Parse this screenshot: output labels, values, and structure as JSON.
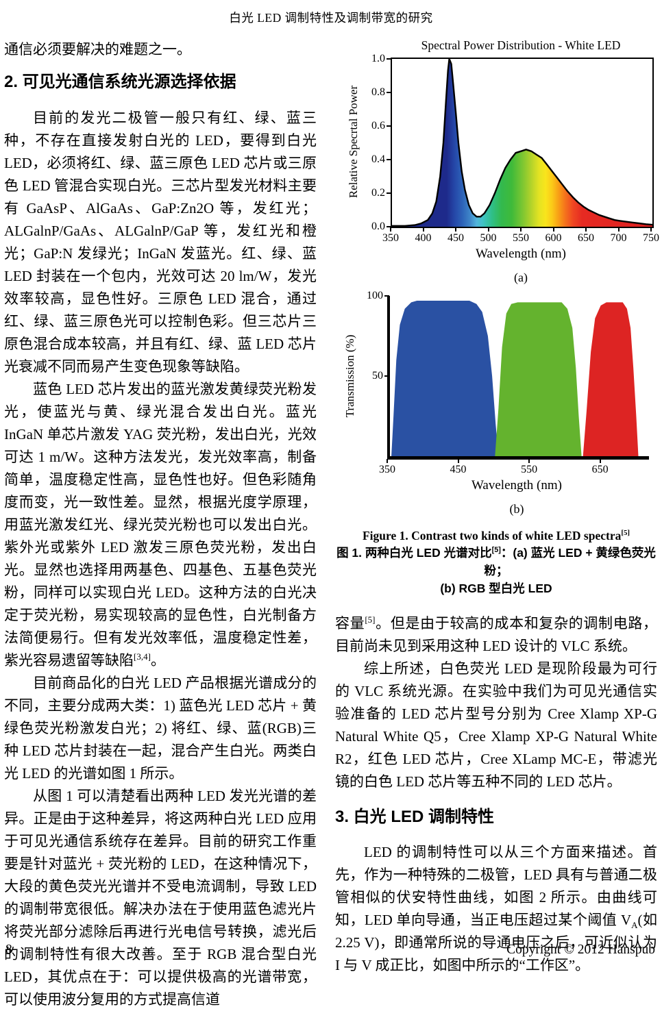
{
  "page": {
    "header_title": "白光 LED 调制特性及调制带宽的研究",
    "footer": {
      "page_number": "8",
      "copyright": "Copyright © 2012 Hanspub"
    }
  },
  "left_column": {
    "intro_line": "通信必须要解决的难题之一。",
    "section2_heading": "2. 可见光通信系统光源选择依据",
    "para1": "目前的发光二极管一般只有红、绿、蓝三种，不存在直接发射白光的 LED，要得到白光 LED，必须将红、绿、蓝三原色 LED 芯片或三原色 LED 管混合实现白光。三芯片型发光材料主要有 GaAsP、AlGaAs、GaP:Zn2O 等，发红光；ALGalnP/GaAs、ALGalnP/GaP 等，发红光和橙光；GaP:N 发绿光；InGaN 发蓝光。红、绿、蓝 LED 封装在一个包内，光效可达 20 lm/W，发光效率较高，显色性好。三原色 LED 混合，通过红、绿、蓝三原色光可以控制色彩。但三芯片三原色混合成本较高，并且有红、绿、蓝 LED 芯片光衰减不同而易产生变色现象等缺陷。",
    "para2_segments": [
      {
        "t": "蓝色 LED 芯片发出的蓝光激发黄绿荧光粉发光，使蓝光与黄、绿光混合发出白光。蓝光 InGaN 单芯片激发 YAG 荧光粉，发出白光，光效可达 1 m/W。这种方法发光，发光效率高，制备简单，温度稳定性高，显色性也好。但色彩随角度而变，光一致性差。显然，根据光度学原理，用蓝光激发红光、绿光荧光粉也可以发出白光。紫外光或紫外 LED 激发三原色荧光粉，发出白光。显然也选择用两基色、四基色、五基色荧光粉，同样可以实现白光 LED。这种方法的白光决定于荧光粉，易实现较高的显色性，白光制备方法简便易行。但有发光效率低，温度稳定性差，紫光容易遗留等缺陷"
      },
      {
        "t": "[3,4]",
        "s": "sup"
      },
      {
        "t": "。"
      }
    ],
    "para3": "目前商品化的白光 LED 产品根据光谱成分的不同，主要分成两大类：1) 蓝色光 LED 芯片 + 黄绿色荧光粉激发白光；2) 将红、绿、蓝(RGB)三种 LED 芯片封装在一起，混合产生白光。两类白光 LED 的光谱如图 1 所示。",
    "para4": "从图 1 可以清楚看出两种 LED 发光光谱的差异。正是由于这种差异，将这两种白光 LED 应用于可见光通信系统存在差异。目前的研究工作重要是针对蓝光 + 荧光粉的 LED，在这种情况下，大段的黄色荧光光谱并不受电流调制，导致 LED 的调制带宽很低。解决办法在于使用蓝色滤光片将荧光部分滤除后再进行光电信号转换，滤光后的调制特性有很大改善。至于 RGB 混合型白光 LED，其优点在于：可以提供极高的光谱带宽，可以使用波分复用的方式提高信道"
  },
  "right_column": {
    "figure_caption": {
      "en_segments": [
        {
          "t": "Figure 1. Contrast two kinds of white LED spectra"
        },
        {
          "t": "[5]",
          "s": "sup"
        }
      ],
      "zh_line1_segments": [
        {
          "t": "图 1. 两种白光 LED 光谱对比"
        },
        {
          "t": "[5]",
          "s": "sup"
        },
        {
          "t": "：(a) 蓝光 LED + 黄绿色荧光粉；"
        }
      ],
      "zh_line2": "(b) RGB 型白光 LED"
    },
    "para1_segments": [
      {
        "t": "容量"
      },
      {
        "t": "[5]",
        "s": "sup"
      },
      {
        "t": "。但是由于较高的成本和复杂的调制电路，目前尚未见到采用这种 LED 设计的 VLC 系统。"
      }
    ],
    "para2": "综上所述，白色荧光 LED 是现阶段最为可行的 VLC 系统光源。在实验中我们为可见光通信实验准备的 LED 芯片型号分别为 Cree Xlamp XP-G Natural White Q5，Cree Xlamp XP-G Natural White R2，红色 LED 芯片，Cree XLamp MC-E，带滤光镜的白色 LED 芯片等五种不同的 LED 芯片。",
    "section3_heading": "3. 白光 LED 调制特性",
    "para3_segments": [
      {
        "t": "LED 的调制特性可以从三个方面来描述。首先，作为一种特殊的二极管，LED 具有与普通二极管相似的伏安特性曲线，如图 2 所示。由曲线可知，LED 单向导通，当正电压超过某个阈值 V"
      },
      {
        "t": "A",
        "s": "sub"
      },
      {
        "t": "(如 2.25 V)，即通常所说的导通电压之后，可近似认为 I 与 V 成正比，如图中所示的“工作区”。"
      }
    ]
  },
  "chart_data": [
    {
      "type": "area",
      "title": "Spectral Power Distribution - White LED",
      "xlabel": "Wavelength (nm)",
      "ylabel": "Relative Specrtal Power",
      "panel_label": "(a)",
      "xlim": [
        350,
        750
      ],
      "ylim": [
        0.0,
        1.0
      ],
      "x_ticks": [
        "350",
        "400",
        "450",
        "500",
        "550",
        "600",
        "650",
        "700",
        "750"
      ],
      "y_ticks": [
        "1.0",
        "0.8",
        "0.6",
        "0.4",
        "0.2",
        "0.0"
      ],
      "grid": false,
      "legend": "none",
      "fill_style": "spectral rainbow gradient by wavelength",
      "gradient_stops": [
        [
          0.0,
          "#1e2a8b"
        ],
        [
          0.21,
          "#1e2a8b"
        ],
        [
          0.24,
          "#2547a8"
        ],
        [
          0.27,
          "#2d63b8"
        ],
        [
          0.3,
          "#3f86c9"
        ],
        [
          0.325,
          "#52b5dc"
        ],
        [
          0.35,
          "#3fc3c3"
        ],
        [
          0.385,
          "#2fbf86"
        ],
        [
          0.42,
          "#33b94e"
        ],
        [
          0.46,
          "#3fba3a"
        ],
        [
          0.5,
          "#7ac632"
        ],
        [
          0.535,
          "#b4d32a"
        ],
        [
          0.565,
          "#e4e322"
        ],
        [
          0.59,
          "#f9e51c"
        ],
        [
          0.615,
          "#fbc918"
        ],
        [
          0.64,
          "#f89e16"
        ],
        [
          0.665,
          "#f5731c"
        ],
        [
          0.695,
          "#ef4722"
        ],
        [
          0.73,
          "#e62a22"
        ],
        [
          1.0,
          "#dd2020"
        ]
      ],
      "series": [
        {
          "name": "white-led-spectrum",
          "points": [
            [
              350,
              0.005
            ],
            [
              370,
              0.005
            ],
            [
              385,
              0.01
            ],
            [
              395,
              0.02
            ],
            [
              405,
              0.04
            ],
            [
              412,
              0.08
            ],
            [
              418,
              0.15
            ],
            [
              424,
              0.3
            ],
            [
              429,
              0.5
            ],
            [
              433,
              0.75
            ],
            [
              436,
              0.93
            ],
            [
              438,
              1.0
            ],
            [
              441,
              0.97
            ],
            [
              444,
              0.85
            ],
            [
              448,
              0.68
            ],
            [
              452,
              0.5
            ],
            [
              457,
              0.33
            ],
            [
              462,
              0.22
            ],
            [
              468,
              0.13
            ],
            [
              474,
              0.08
            ],
            [
              480,
              0.06
            ],
            [
              486,
              0.06
            ],
            [
              492,
              0.08
            ],
            [
              500,
              0.13
            ],
            [
              508,
              0.2
            ],
            [
              516,
              0.28
            ],
            [
              524,
              0.35
            ],
            [
              532,
              0.4
            ],
            [
              540,
              0.44
            ],
            [
              548,
              0.45
            ],
            [
              556,
              0.46
            ],
            [
              564,
              0.45
            ],
            [
              572,
              0.43
            ],
            [
              580,
              0.41
            ],
            [
              588,
              0.37
            ],
            [
              596,
              0.33
            ],
            [
              604,
              0.29
            ],
            [
              612,
              0.25
            ],
            [
              620,
              0.21
            ],
            [
              628,
              0.175
            ],
            [
              636,
              0.145
            ],
            [
              644,
              0.12
            ],
            [
              652,
              0.1
            ],
            [
              660,
              0.085
            ],
            [
              668,
              0.07
            ],
            [
              676,
              0.06
            ],
            [
              684,
              0.05
            ],
            [
              692,
              0.04
            ],
            [
              700,
              0.035
            ],
            [
              710,
              0.03
            ],
            [
              720,
              0.025
            ],
            [
              730,
              0.02
            ],
            [
              740,
              0.015
            ],
            [
              750,
              0.012
            ]
          ]
        }
      ]
    },
    {
      "type": "area",
      "title": "",
      "xlabel": "Wavelength (nm)",
      "ylabel": "Transmission (%)",
      "panel_label": "(b)",
      "xlim": [
        350,
        715
      ],
      "ylim": [
        0,
        100
      ],
      "x_ticks": [
        "350",
        "450",
        "550",
        "650"
      ],
      "y_ticks": [
        "100",
        "50"
      ],
      "grid": false,
      "legend": "none",
      "series": [
        {
          "name": "blue-filter-band",
          "color": "#2a51a3",
          "points": [
            [
              352,
              0
            ],
            [
              355,
              25
            ],
            [
              359,
              60
            ],
            [
              364,
              82
            ],
            [
              371,
              92
            ],
            [
              380,
              96
            ],
            [
              388,
              97
            ],
            [
              462,
              97
            ],
            [
              472,
              95
            ],
            [
              480,
              90
            ],
            [
              488,
              75
            ],
            [
              494,
              50
            ],
            [
              499,
              20
            ],
            [
              503,
              0
            ]
          ]
        },
        {
          "name": "green-filter-band",
          "color": "#64b32e",
          "points": [
            [
              498,
              0
            ],
            [
              503,
              30
            ],
            [
              508,
              68
            ],
            [
              514,
              89
            ],
            [
              521,
              95
            ],
            [
              530,
              96
            ],
            [
              592,
              96
            ],
            [
              600,
              92
            ],
            [
              607,
              80
            ],
            [
              612,
              55
            ],
            [
              616,
              25
            ],
            [
              620,
              0
            ]
          ]
        },
        {
          "name": "red-filter-band",
          "color": "#dd2423",
          "points": [
            [
              622,
              0
            ],
            [
              627,
              28
            ],
            [
              633,
              65
            ],
            [
              639,
              86
            ],
            [
              647,
              94
            ],
            [
              655,
              96
            ],
            [
              678,
              96
            ],
            [
              684,
              92
            ],
            [
              689,
              80
            ],
            [
              693,
              55
            ],
            [
              697,
              25
            ],
            [
              700,
              0
            ]
          ]
        }
      ]
    }
  ]
}
